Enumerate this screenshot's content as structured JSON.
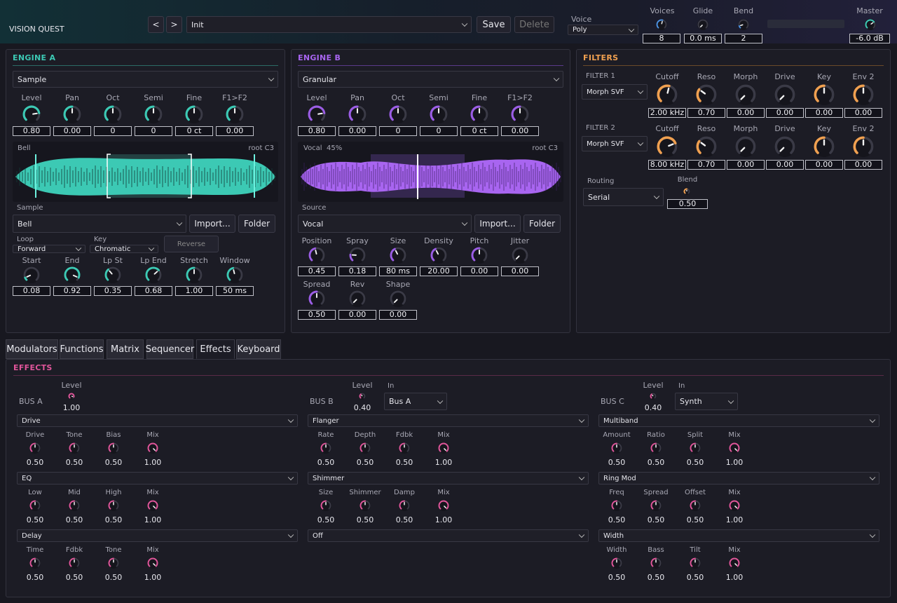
{
  "app": {
    "title": "VISION QUEST"
  },
  "header": {
    "prev": "<",
    "next": ">",
    "preset": "Init",
    "save": "Save",
    "delete": "Delete",
    "voice_label": "Voice",
    "voice_mode": "Poly",
    "voices_label": "Voices",
    "voices": "8",
    "glide_label": "Glide",
    "glide": "0.0 ms",
    "bend_label": "Bend",
    "bend": "2",
    "master_label": "Master",
    "master": "-6.0 dB"
  },
  "engineA": {
    "title": "ENGINE A",
    "type": "Sample",
    "knobs": [
      {
        "label": "Level",
        "value": "0.80",
        "level": 0.8
      },
      {
        "label": "Pan",
        "value": "0.00",
        "level": 0.5
      },
      {
        "label": "Oct",
        "value": "0",
        "level": 0.5
      },
      {
        "label": "Semi",
        "value": "0",
        "level": 0.5
      },
      {
        "label": "Fine",
        "value": "0 ct",
        "level": 0.5
      },
      {
        "label": "F1>F2",
        "value": "0.00",
        "level": 0.5
      }
    ],
    "wave_name": "Bell",
    "wave_root": "root C3",
    "sample_label": "Sample",
    "sample": "Bell",
    "import": "Import...",
    "folder": "Folder",
    "loop_label": "Loop",
    "loop": "Forward",
    "key_label": "Key",
    "key": "Chromatic",
    "reverse": "Reverse",
    "knobs2": [
      {
        "label": "Start",
        "value": "0.08",
        "level": 0.08
      },
      {
        "label": "End",
        "value": "0.92",
        "level": 0.92
      },
      {
        "label": "Lp St",
        "value": "0.35",
        "level": 0.35
      },
      {
        "label": "Lp End",
        "value": "0.68",
        "level": 0.68
      },
      {
        "label": "Stretch",
        "value": "1.00",
        "level": 0.5
      },
      {
        "label": "Window",
        "value": "50 ms",
        "level": 0.45
      }
    ]
  },
  "engineB": {
    "title": "ENGINE B",
    "type": "Granular",
    "knobs": [
      {
        "label": "Level",
        "value": "0.80",
        "level": 0.8
      },
      {
        "label": "Pan",
        "value": "0.00",
        "level": 0.5
      },
      {
        "label": "Oct",
        "value": "0",
        "level": 0.5
      },
      {
        "label": "Semi",
        "value": "0",
        "level": 0.5
      },
      {
        "label": "Fine",
        "value": "0 ct",
        "level": 0.5
      },
      {
        "label": "F1>F2",
        "value": "0.00",
        "level": 0.5
      }
    ],
    "wave_name": "Vocal",
    "wave_pos": "45%",
    "wave_root": "root C3",
    "source_label": "Source",
    "source": "Vocal",
    "import": "Import...",
    "folder": "Folder",
    "knobs2": [
      {
        "label": "Position",
        "value": "0.45",
        "level": 0.45
      },
      {
        "label": "Spray",
        "value": "0.18",
        "level": 0.18
      },
      {
        "label": "Size",
        "value": "80 ms",
        "level": 0.4
      },
      {
        "label": "Density",
        "value": "20.00",
        "level": 0.4
      },
      {
        "label": "Pitch",
        "value": "0.00",
        "level": 0.5
      },
      {
        "label": "Jitter",
        "value": "0.00",
        "level": 0
      }
    ],
    "knobs3": [
      {
        "label": "Spread",
        "value": "0.50",
        "level": 0.5
      },
      {
        "label": "Rev",
        "value": "0.00",
        "level": 0
      },
      {
        "label": "Shape",
        "value": "0.00",
        "level": 0
      }
    ]
  },
  "filters": {
    "title": "FILTERS",
    "f1": {
      "label": "FILTER 1",
      "type": "Morph SVF",
      "knobs": [
        {
          "label": "Cutoff",
          "value": "2.00 kHz",
          "level": 0.55
        },
        {
          "label": "Reso",
          "value": "0.70",
          "level": 0.3
        },
        {
          "label": "Morph",
          "value": "0.00",
          "level": 0
        },
        {
          "label": "Drive",
          "value": "0.00",
          "level": 0
        },
        {
          "label": "Key",
          "value": "0.00",
          "level": 0.5
        },
        {
          "label": "Env 2",
          "value": "0.00",
          "level": 0.5
        }
      ]
    },
    "f2": {
      "label": "FILTER 2",
      "type": "Morph SVF",
      "knobs": [
        {
          "label": "Cutoff",
          "value": "8.00 kHz",
          "level": 0.75
        },
        {
          "label": "Reso",
          "value": "0.70",
          "level": 0.3
        },
        {
          "label": "Morph",
          "value": "0.00",
          "level": 0
        },
        {
          "label": "Drive",
          "value": "0.00",
          "level": 0
        },
        {
          "label": "Key",
          "value": "0.00",
          "level": 0.5
        },
        {
          "label": "Env 2",
          "value": "0.00",
          "level": 0.5
        }
      ]
    },
    "routing_label": "Routing",
    "routing": "Serial",
    "blend_label": "Blend",
    "blend": "0.50"
  },
  "tabs": [
    "Modulators",
    "Functions",
    "Matrix",
    "Sequencer",
    "Effects",
    "Keyboard"
  ],
  "effects": {
    "title": "EFFECTS",
    "busA": {
      "label": "BUS A",
      "level_label": "Level",
      "level": "1.00",
      "slots": [
        {
          "type": "Drive",
          "params": [
            {
              "label": "Drive",
              "value": "0.50"
            },
            {
              "label": "Tone",
              "value": "0.50"
            },
            {
              "label": "Bias",
              "value": "0.50"
            },
            {
              "label": "Mix",
              "value": "1.00"
            }
          ]
        },
        {
          "type": "EQ",
          "params": [
            {
              "label": "Low",
              "value": "0.50"
            },
            {
              "label": "Mid",
              "value": "0.50"
            },
            {
              "label": "High",
              "value": "0.50"
            },
            {
              "label": "Mix",
              "value": "1.00"
            }
          ]
        },
        {
          "type": "Delay",
          "params": [
            {
              "label": "Time",
              "value": "0.50"
            },
            {
              "label": "Fdbk",
              "value": "0.50"
            },
            {
              "label": "Tone",
              "value": "0.50"
            },
            {
              "label": "Mix",
              "value": "1.00"
            }
          ]
        }
      ]
    },
    "busB": {
      "label": "BUS B",
      "level_label": "Level",
      "level": "0.40",
      "in_label": "In",
      "in": "Bus A",
      "slots": [
        {
          "type": "Flanger",
          "params": [
            {
              "label": "Rate",
              "value": "0.50"
            },
            {
              "label": "Depth",
              "value": "0.50"
            },
            {
              "label": "Fdbk",
              "value": "0.50"
            },
            {
              "label": "Mix",
              "value": "1.00"
            }
          ]
        },
        {
          "type": "Shimmer",
          "params": [
            {
              "label": "Size",
              "value": "0.50"
            },
            {
              "label": "Shimmer",
              "value": "0.50"
            },
            {
              "label": "Damp",
              "value": "0.50"
            },
            {
              "label": "Mix",
              "value": "1.00"
            }
          ]
        },
        {
          "type": "Off",
          "params": []
        }
      ]
    },
    "busC": {
      "label": "BUS C",
      "level_label": "Level",
      "level": "0.40",
      "in_label": "In",
      "in": "Synth",
      "slots": [
        {
          "type": "Multiband",
          "params": [
            {
              "label": "Amount",
              "value": "0.50"
            },
            {
              "label": "Ratio",
              "value": "0.50"
            },
            {
              "label": "Split",
              "value": "0.50"
            },
            {
              "label": "Mix",
              "value": "1.00"
            }
          ]
        },
        {
          "type": "Ring Mod",
          "params": [
            {
              "label": "Freq",
              "value": "0.50"
            },
            {
              "label": "Spread",
              "value": "0.50"
            },
            {
              "label": "Offset",
              "value": "0.50"
            },
            {
              "label": "Mix",
              "value": "1.00"
            }
          ]
        },
        {
          "type": "Width",
          "params": [
            {
              "label": "Width",
              "value": "0.50"
            },
            {
              "label": "Bass",
              "value": "0.50"
            },
            {
              "label": "Tilt",
              "value": "0.50"
            },
            {
              "label": "Mix",
              "value": "1.00"
            }
          ]
        }
      ]
    }
  },
  "colors": {
    "teal": "#3cc9b4",
    "purple": "#9b5de5",
    "orange": "#f0a050",
    "pink": "#e0559a",
    "blue": "#4a90e2",
    "track": "#3a3a46"
  }
}
